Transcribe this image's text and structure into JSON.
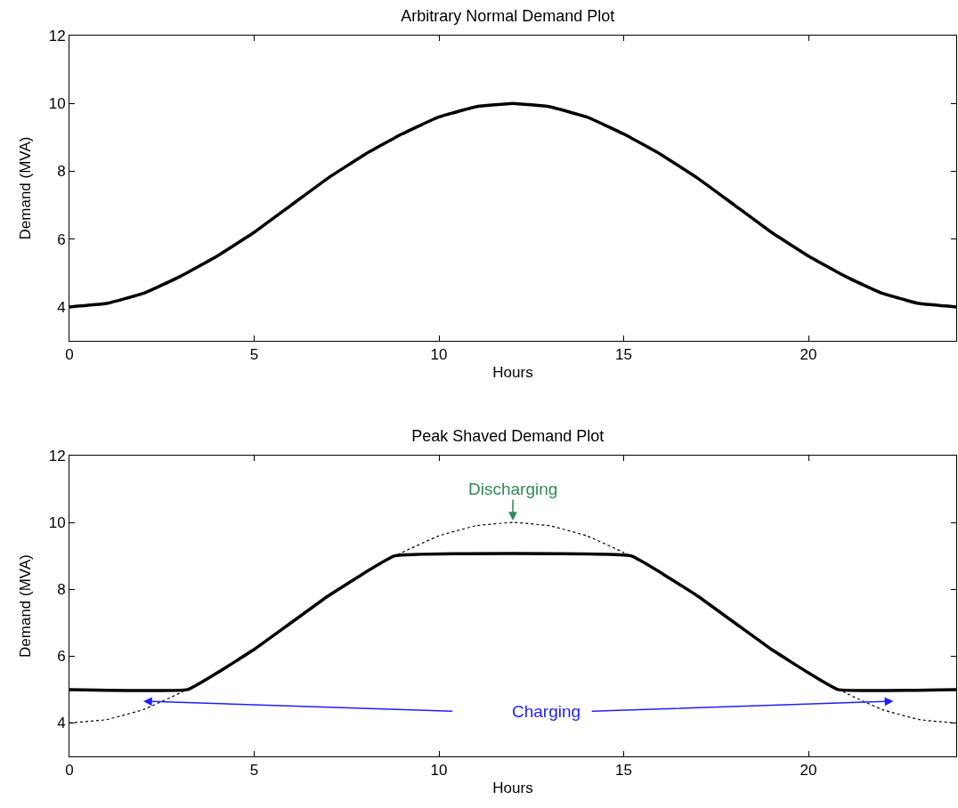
{
  "chart_data": [
    {
      "type": "line",
      "title": "Arbitrary Normal Demand Plot",
      "xlabel": "Hours",
      "ylabel": "Demand (MVA)",
      "xlim": [
        0,
        24
      ],
      "xticks": [
        0,
        5,
        10,
        15,
        20
      ],
      "ylim": [
        3,
        12
      ],
      "yticks": [
        4,
        6,
        8,
        10,
        12
      ],
      "grid": false,
      "marker": "none",
      "series": [
        {
          "color": "#000000",
          "line_style": "solid",
          "x": [
            0,
            1,
            2,
            3,
            4,
            5,
            6,
            7,
            8,
            9,
            10,
            11,
            12,
            13,
            14,
            15,
            16,
            17,
            18,
            19,
            20,
            21,
            22,
            23,
            24
          ],
          "values": [
            4,
            4.1,
            4.4,
            4.9,
            5.5,
            6.2,
            7,
            7.8,
            8.5,
            9.1,
            9.6,
            9.9,
            10,
            9.9,
            9.6,
            9.1,
            8.5,
            7.8,
            7,
            6.2,
            5.5,
            4.9,
            4.4,
            4.1,
            4
          ]
        }
      ]
    },
    {
      "type": "line",
      "title": "Peak Shaved Demand Plot",
      "xlabel": "Hours",
      "ylabel": "Demand (MVA)",
      "xlim": [
        0,
        24
      ],
      "xticks": [
        0,
        5,
        10,
        15,
        20
      ],
      "ylim": [
        3,
        12
      ],
      "yticks": [
        4,
        6,
        8,
        10,
        12
      ],
      "grid": false,
      "marker": "none",
      "annotations": [
        {
          "text": "Discharging",
          "x": 12,
          "y": 10
        },
        "Charging"
      ],
      "series": [
        {
          "color": "#000000",
          "line_style": "dotted",
          "x": [
            0,
            1,
            2,
            3,
            4,
            5,
            6,
            7,
            8,
            9,
            10,
            11,
            12,
            13,
            14,
            15,
            16,
            17,
            18,
            19,
            20,
            21,
            22,
            23,
            24
          ],
          "values": [
            4,
            4.1,
            4.4,
            4.9,
            5.5,
            6.2,
            7,
            7.8,
            8.5,
            9.1,
            9.6,
            9.9,
            10,
            9.9,
            9.6,
            9.1,
            8.5,
            7.8,
            7,
            6.2,
            5.5,
            4.9,
            4.4,
            4.1,
            4
          ]
        },
        {
          "color": "#000000",
          "line_style": "solid",
          "x": [
            0,
            3.2,
            4,
            5,
            6,
            7,
            8,
            8.8,
            15.2,
            16,
            17,
            18,
            19,
            20,
            20.8,
            24
          ],
          "values": [
            5,
            5,
            5.5,
            6.2,
            7,
            7.8,
            8.5,
            9,
            9,
            8.5,
            7.8,
            7,
            6.2,
            5.5,
            5,
            5
          ]
        }
      ]
    }
  ]
}
